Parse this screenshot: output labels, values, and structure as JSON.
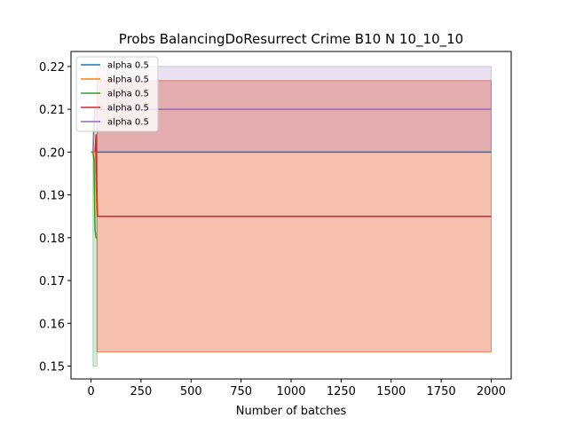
{
  "chart_data": {
    "type": "line",
    "title": "Probs BalancingDoResurrect Crime B10 N 10_10_10",
    "xlabel": "Number of batches",
    "ylabel": "",
    "xlim": [
      -100,
      2100
    ],
    "ylim": [
      0.147,
      0.2235
    ],
    "xticks": [
      0,
      250,
      500,
      750,
      1000,
      1250,
      1500,
      1750,
      2000
    ],
    "yticks": [
      0.15,
      0.16,
      0.17,
      0.18,
      0.19,
      0.2,
      0.21,
      0.22
    ],
    "ytick_labels": [
      "0.15",
      "0.16",
      "0.17",
      "0.18",
      "0.19",
      "0.20",
      "0.21",
      "0.22"
    ],
    "grid": false,
    "legend_position": "upper-left",
    "series": [
      {
        "name": "alpha 0.5",
        "color": "#1f77b4",
        "points": [
          [
            0,
            0.2
          ],
          [
            10,
            0.2
          ],
          [
            20,
            0.2
          ],
          [
            30,
            0.2
          ],
          [
            2000,
            0.2
          ]
        ],
        "band": {
          "lower": 0.2,
          "upper": 0.2,
          "x_start": 0
        }
      },
      {
        "name": "alpha 0.5",
        "color": "#ff7f0e",
        "points": [
          [
            0,
            0.2
          ],
          [
            10,
            0.2
          ],
          [
            20,
            0.2
          ],
          [
            30,
            0.185
          ],
          [
            2000,
            0.185
          ]
        ],
        "band": {
          "lower": 0.1533,
          "upper": 0.2167,
          "x_start": 30
        }
      },
      {
        "name": "alpha 0.5",
        "color": "#2ca02c",
        "points": [
          [
            0,
            0.2
          ],
          [
            10,
            0.2
          ],
          [
            15,
            0.198
          ],
          [
            20,
            0.182
          ],
          [
            25,
            0.18
          ],
          [
            30,
            0.18
          ]
        ],
        "band": {
          "lower": 0.15,
          "upper": 0.21,
          "x_start": 10,
          "x_end": 30
        }
      },
      {
        "name": "alpha 0.5",
        "color": "#d62728",
        "points": [
          [
            20,
            0.2
          ],
          [
            25,
            0.204
          ],
          [
            28,
            0.195
          ],
          [
            32,
            0.185
          ],
          [
            2000,
            0.185
          ]
        ],
        "band": {
          "lower": 0.1533,
          "upper": 0.2167,
          "x_start": 30
        }
      },
      {
        "name": "alpha 0.5",
        "color": "#9467bd",
        "points": [
          [
            10,
            0.2
          ],
          [
            15,
            0.206
          ],
          [
            20,
            0.21
          ],
          [
            2000,
            0.21
          ]
        ],
        "band": {
          "lower": 0.2,
          "upper": 0.22,
          "x_start": 30
        }
      }
    ]
  }
}
